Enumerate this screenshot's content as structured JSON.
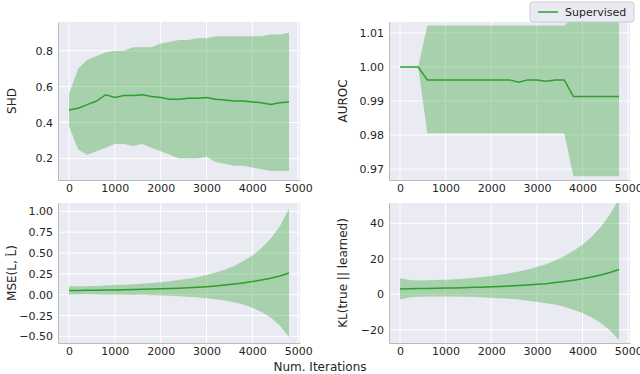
{
  "chart_data": [
    {
      "type": "line",
      "ylabel": "SHD",
      "x": [
        0,
        200,
        400,
        600,
        800,
        1000,
        1200,
        1400,
        1600,
        1800,
        2000,
        2200,
        2400,
        2600,
        2800,
        3000,
        3200,
        3400,
        3600,
        3800,
        4000,
        4200,
        4400,
        4600,
        4800
      ],
      "xlim": [
        -240,
        5040
      ],
      "xticks": [
        0,
        1000,
        2000,
        3000,
        4000,
        5000
      ],
      "ylim": [
        0.08,
        0.96
      ],
      "yticks": [
        0.2,
        0.4,
        0.6,
        0.8
      ],
      "grid": true,
      "series": [
        {
          "color": "#2ca02c",
          "values": [
            0.47,
            0.48,
            0.5,
            0.52,
            0.555,
            0.54,
            0.55,
            0.55,
            0.555,
            0.545,
            0.54,
            0.53,
            0.53,
            0.535,
            0.535,
            0.54,
            0.53,
            0.525,
            0.52,
            0.52,
            0.515,
            0.51,
            0.5,
            0.51,
            0.515
          ],
          "lower": [
            0.38,
            0.25,
            0.22,
            0.24,
            0.26,
            0.28,
            0.28,
            0.27,
            0.28,
            0.26,
            0.24,
            0.22,
            0.2,
            0.2,
            0.2,
            0.21,
            0.18,
            0.17,
            0.16,
            0.16,
            0.15,
            0.14,
            0.13,
            0.13,
            0.13
          ],
          "upper": [
            0.56,
            0.7,
            0.75,
            0.77,
            0.79,
            0.8,
            0.8,
            0.82,
            0.82,
            0.82,
            0.84,
            0.85,
            0.86,
            0.86,
            0.87,
            0.87,
            0.88,
            0.88,
            0.88,
            0.88,
            0.88,
            0.88,
            0.89,
            0.89,
            0.9
          ]
        }
      ]
    },
    {
      "type": "line",
      "ylabel": "AUROC",
      "legend": "upper right",
      "x": [
        0,
        200,
        400,
        600,
        800,
        1000,
        1200,
        1400,
        1600,
        1800,
        2000,
        2200,
        2400,
        2600,
        2800,
        3000,
        3200,
        3400,
        3600,
        3800,
        4000,
        4200,
        4400,
        4600,
        4800
      ],
      "xlim": [
        -240,
        5040
      ],
      "xticks": [
        0,
        1000,
        2000,
        3000,
        4000,
        5000
      ],
      "ylim": [
        0.9668,
        1.0132
      ],
      "yticks": [
        0.97,
        0.98,
        0.99,
        {
          "value": 1,
          "label": "1.00"
        },
        1.01
      ],
      "grid": true,
      "series": [
        {
          "name": "Supervised",
          "color": "#2ca02c",
          "values": [
            1,
            1,
            1,
            0.9962,
            0.9962,
            0.9962,
            0.9962,
            0.9962,
            0.9962,
            0.9962,
            0.9962,
            0.9962,
            0.9962,
            0.9955,
            0.9962,
            0.9962,
            0.9958,
            0.9962,
            0.9962,
            0.9913,
            0.9913,
            0.9913,
            0.9913,
            0.9913,
            0.9913
          ],
          "lower": [
            1,
            1,
            1,
            0.9805,
            0.9805,
            0.9805,
            0.9805,
            0.9805,
            0.9805,
            0.9805,
            0.9805,
            0.9805,
            0.9805,
            0.9805,
            0.9805,
            0.9805,
            0.9805,
            0.9805,
            0.9805,
            0.9679,
            0.9679,
            0.9679,
            0.9679,
            0.9679,
            0.9679
          ],
          "upper": [
            1,
            1,
            1,
            1.0122,
            1.0122,
            1.0122,
            1.0122,
            1.0122,
            1.0122,
            1.0122,
            1.0122,
            1.0122,
            1.0122,
            1.0122,
            1.0122,
            1.0122,
            1.0122,
            1.0122,
            1.0122,
            1.0145,
            1.0145,
            1.0145,
            1.0145,
            1.0145,
            1.0145
          ]
        }
      ]
    },
    {
      "type": "line",
      "ylabel": "MSE(L, L̂)",
      "xlabel": "Num. Iterations",
      "x": [
        0,
        200,
        400,
        600,
        800,
        1000,
        1200,
        1400,
        1600,
        1800,
        2000,
        2200,
        2400,
        2600,
        2800,
        3000,
        3200,
        3400,
        3600,
        3800,
        4000,
        4200,
        4400,
        4600,
        4800
      ],
      "xlim": [
        -240,
        5040
      ],
      "xticks": [
        0,
        1000,
        2000,
        3000,
        4000,
        5000
      ],
      "ylim": [
        -0.58,
        1.1
      ],
      "yticks": [
        {
          "value": -0.5,
          "label": "−0.50"
        },
        {
          "value": -0.25,
          "label": "−0.25"
        },
        {
          "value": 0,
          "label": "0.00"
        },
        0.25,
        {
          "value": 0.5,
          "label": "0.50"
        },
        0.75,
        {
          "value": 1,
          "label": "1.00"
        }
      ],
      "grid": true,
      "series": [
        {
          "color": "#2ca02c",
          "values": [
            0.05,
            0.051,
            0.052,
            0.054,
            0.055,
            0.057,
            0.059,
            0.061,
            0.064,
            0.067,
            0.07,
            0.074,
            0.078,
            0.083,
            0.089,
            0.096,
            0.105,
            0.115,
            0.127,
            0.141,
            0.157,
            0.176,
            0.198,
            0.225,
            0.26
          ],
          "lower": [
            0.0,
            0.002,
            0.004,
            0.003,
            0.0,
            -0.001,
            -0.002,
            -0.003,
            -0.002,
            -0.006,
            -0.01,
            -0.012,
            -0.019,
            -0.024,
            -0.032,
            -0.043,
            -0.055,
            -0.07,
            -0.091,
            -0.118,
            -0.156,
            -0.208,
            -0.274,
            -0.37,
            -0.51
          ],
          "upper": [
            0.1,
            0.1,
            0.1,
            0.105,
            0.11,
            0.115,
            0.12,
            0.125,
            0.13,
            0.14,
            0.15,
            0.16,
            0.175,
            0.19,
            0.21,
            0.235,
            0.265,
            0.3,
            0.345,
            0.4,
            0.47,
            0.56,
            0.67,
            0.82,
            1.03
          ]
        }
      ]
    },
    {
      "type": "line",
      "ylabel": "KL(true || learned)",
      "x": [
        0,
        200,
        400,
        600,
        800,
        1000,
        1200,
        1400,
        1600,
        1800,
        2000,
        2200,
        2400,
        2600,
        2800,
        3000,
        3200,
        3400,
        3600,
        3800,
        4000,
        4200,
        4400,
        4600,
        4800
      ],
      "xlim": [
        -240,
        5040
      ],
      "xticks": [
        0,
        1000,
        2000,
        3000,
        4000,
        5000
      ],
      "ylim": [
        -27.5,
        51.5
      ],
      "yticks": [
        {
          "value": -20,
          "label": "−20"
        },
        0,
        20,
        40
      ],
      "grid": true,
      "series": [
        {
          "color": "#2ca02c",
          "values": [
            3.0,
            3.1,
            3.2,
            3.3,
            3.4,
            3.5,
            3.6,
            3.7,
            3.9,
            4.0,
            4.2,
            4.4,
            4.6,
            4.9,
            5.2,
            5.6,
            6.0,
            6.6,
            7.2,
            7.9,
            8.7,
            9.7,
            10.9,
            12.3,
            14.0
          ],
          "lower": [
            -3.0,
            -1.8,
            -1.4,
            -1.3,
            -1.2,
            -1.2,
            -1.3,
            -1.4,
            -1.4,
            -1.7,
            -1.9,
            -2.2,
            -2.6,
            -3.0,
            -3.6,
            -4.2,
            -5.0,
            -5.8,
            -7.1,
            -8.7,
            -10.6,
            -13.1,
            -16.2,
            -20.4,
            -26.0
          ],
          "upper": [
            9.0,
            8.0,
            7.8,
            7.9,
            8.0,
            8.2,
            8.5,
            8.8,
            9.2,
            9.7,
            10.3,
            11.0,
            11.8,
            12.8,
            14.0,
            15.4,
            17.0,
            19.0,
            21.5,
            24.5,
            28.0,
            32.5,
            38.0,
            45.0,
            54.0
          ]
        }
      ]
    }
  ]
}
